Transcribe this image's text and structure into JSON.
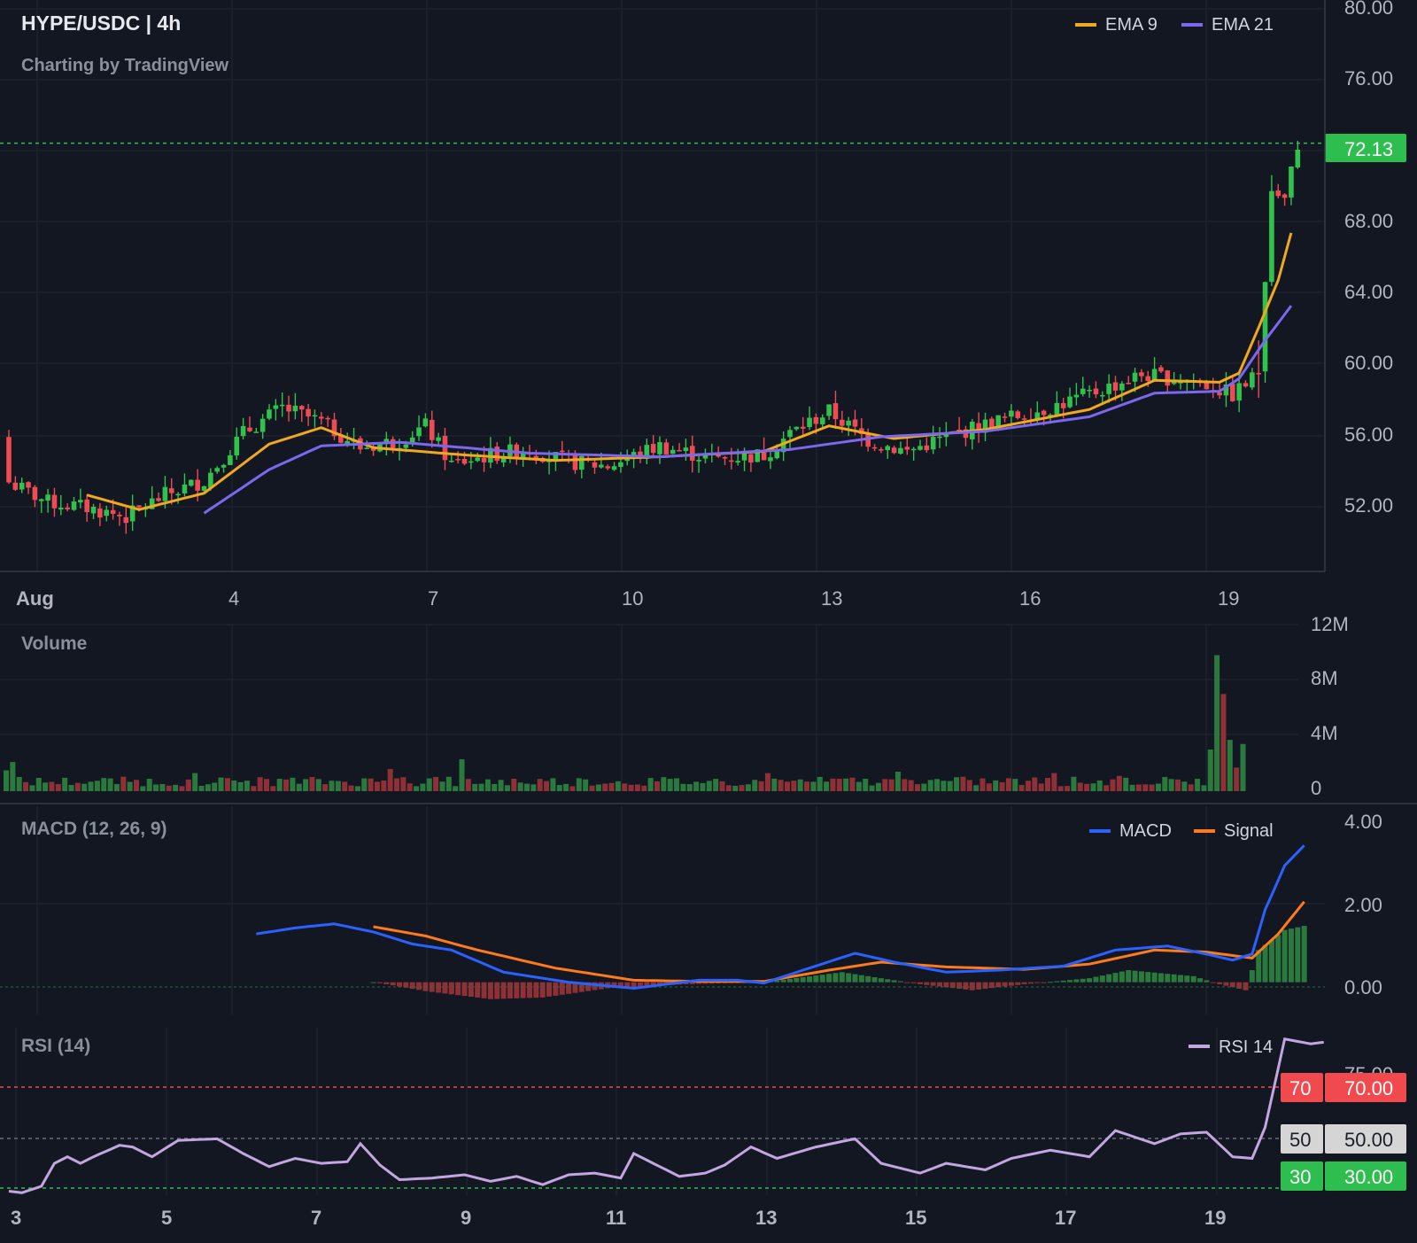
{
  "header": {
    "title": "HYPE/USDC | 4h",
    "attribution": "Charting by TradingView"
  },
  "colors": {
    "background": "#131722",
    "grid": "#232733",
    "text": "#d1d4dc",
    "subtext": "#8a8f9c",
    "up": "#26a69a",
    "candle_up": "#31c24d",
    "candle_down": "#ef4b55",
    "vol_up": "#2a7a3e",
    "vol_down": "#8e3035",
    "ema9": "#f0a91d",
    "ema21": "#7b68ee",
    "macd": "#2962ff",
    "signal": "#ff7a1a",
    "rsi": "#c3a6e0",
    "last_price": "#2ebd4f",
    "rsi_70": "#f0494e",
    "rsi_50": "#d5d5d5",
    "rsi_30": "#2ebd4f"
  },
  "price_panel": {
    "legend": [
      {
        "name": "EMA 9",
        "color": "#f0a91d"
      },
      {
        "name": "EMA 21",
        "color": "#7b68ee"
      }
    ],
    "y_ticks": [
      "80.00",
      "76.00",
      "68.00",
      "64.00",
      "60.00",
      "56.00",
      "52.00"
    ],
    "last_price_label": "72.13",
    "x_ticks": [
      "Aug",
      "4",
      "7",
      "10",
      "13",
      "16",
      "19"
    ]
  },
  "volume_panel": {
    "title": "Volume",
    "y_ticks": [
      "12M",
      "8M",
      "4M",
      "0"
    ]
  },
  "macd_panel": {
    "title": "MACD (12, 26, 9)",
    "legend": [
      {
        "name": "MACD",
        "color": "#2962ff"
      },
      {
        "name": "Signal",
        "color": "#ff7a1a"
      }
    ],
    "y_ticks": [
      "4.00",
      "2.00",
      "0.00"
    ]
  },
  "rsi_panel": {
    "title": "RSI (14)",
    "legend": [
      {
        "name": "RSI 14",
        "color": "#c3a6e0"
      }
    ],
    "top_tick": "75.00",
    "levels": [
      {
        "short": "70",
        "label": "70.00"
      },
      {
        "short": "50",
        "label": "50.00"
      },
      {
        "short": "30",
        "label": "30.00"
      }
    ],
    "x_ticks": [
      "3",
      "5",
      "7",
      "9",
      "11",
      "13",
      "15",
      "17",
      "19"
    ]
  },
  "chart_data": [
    {
      "type": "candlestick",
      "title": "HYPE/USDC | 4h",
      "x_axis": "Aug 1 – Aug 20",
      "ylim": [
        48.6,
        80.0
      ],
      "grid": true,
      "legend_position": "top-right",
      "last_price": 72.13,
      "anchors": [
        [
          0,
          53.5
        ],
        [
          6,
          52.4
        ],
        [
          12,
          52.1
        ],
        [
          18,
          51.6
        ],
        [
          24,
          52.8
        ],
        [
          30,
          53.6
        ],
        [
          36,
          56.2
        ],
        [
          42,
          57.6
        ],
        [
          48,
          56.8
        ],
        [
          54,
          55.4
        ],
        [
          60,
          55.8
        ],
        [
          64,
          56.6
        ],
        [
          68,
          54.5
        ],
        [
          74,
          55.0
        ],
        [
          80,
          55.3
        ],
        [
          86,
          54.6
        ],
        [
          92,
          54.4
        ],
        [
          100,
          55.5
        ],
        [
          108,
          54.8
        ],
        [
          116,
          55.0
        ],
        [
          120,
          56.2
        ],
        [
          126,
          57.4
        ],
        [
          132,
          55.8
        ],
        [
          138,
          55.2
        ],
        [
          144,
          56.0
        ],
        [
          152,
          56.9
        ],
        [
          160,
          57.6
        ],
        [
          168,
          58.6
        ],
        [
          174,
          59.4
        ],
        [
          182,
          59.1
        ],
        [
          188,
          58.3
        ],
        [
          192,
          59.5
        ],
        [
          194,
          69.5
        ],
        [
          196,
          69.0
        ],
        [
          198,
          72.1
        ]
      ],
      "ema9_anchors": [
        [
          12,
          52.8
        ],
        [
          20,
          52.0
        ],
        [
          30,
          52.9
        ],
        [
          40,
          55.6
        ],
        [
          48,
          56.5
        ],
        [
          56,
          55.4
        ],
        [
          70,
          55.0
        ],
        [
          84,
          54.7
        ],
        [
          100,
          54.9
        ],
        [
          116,
          55.2
        ],
        [
          126,
          56.6
        ],
        [
          136,
          55.9
        ],
        [
          150,
          56.4
        ],
        [
          166,
          57.5
        ],
        [
          176,
          59.1
        ],
        [
          186,
          59.0
        ],
        [
          189,
          59.5
        ],
        [
          192,
          62.0
        ],
        [
          195,
          64.6
        ],
        [
          197,
          67.2
        ]
      ],
      "ema21_anchors": [
        [
          30,
          51.8
        ],
        [
          40,
          54.2
        ],
        [
          48,
          55.5
        ],
        [
          60,
          55.7
        ],
        [
          80,
          55.1
        ],
        [
          100,
          54.9
        ],
        [
          120,
          55.3
        ],
        [
          134,
          56.0
        ],
        [
          150,
          56.3
        ],
        [
          166,
          57.1
        ],
        [
          176,
          58.4
        ],
        [
          186,
          58.5
        ],
        [
          189,
          59.2
        ],
        [
          193,
          61.3
        ],
        [
          197,
          63.2
        ]
      ],
      "series": [
        {
          "name": "EMA 9"
        },
        {
          "name": "EMA 21"
        }
      ]
    },
    {
      "type": "bar",
      "title": "Volume",
      "ylim": [
        0,
        12
      ],
      "unit": "M",
      "spikes": [
        [
          0,
          1.5
        ],
        [
          1,
          2.1
        ],
        [
          29,
          1.3
        ],
        [
          59,
          1.6
        ],
        [
          70,
          2.3
        ],
        [
          117,
          1.3
        ],
        [
          137,
          1.4
        ],
        [
          161,
          1.3
        ],
        [
          171,
          1.1
        ],
        [
          185,
          3.0
        ],
        [
          186,
          9.8
        ],
        [
          187,
          7.0
        ],
        [
          188,
          3.7
        ],
        [
          189,
          1.7
        ],
        [
          190,
          3.4
        ]
      ]
    },
    {
      "type": "line",
      "title": "MACD (12, 26, 9)",
      "ylim": [
        -0.8,
        4.0
      ],
      "legend_position": "top-right",
      "series": [
        {
          "name": "MACD",
          "anchors": [
            [
              38,
              1.2
            ],
            [
              44,
              1.35
            ],
            [
              50,
              1.45
            ],
            [
              56,
              1.25
            ],
            [
              62,
              0.95
            ],
            [
              68,
              0.8
            ],
            [
              76,
              0.25
            ],
            [
              86,
              0.0
            ],
            [
              96,
              -0.15
            ],
            [
              106,
              0.05
            ],
            [
              112,
              0.05
            ],
            [
              116,
              -0.02
            ],
            [
              122,
              0.3
            ],
            [
              130,
              0.72
            ],
            [
              136,
              0.5
            ],
            [
              144,
              0.25
            ],
            [
              152,
              0.3
            ],
            [
              162,
              0.4
            ],
            [
              170,
              0.8
            ],
            [
              178,
              0.9
            ],
            [
              184,
              0.7
            ],
            [
              188,
              0.55
            ],
            [
              191,
              0.7
            ],
            [
              193,
              1.8
            ],
            [
              196,
              2.9
            ],
            [
              199,
              3.4
            ]
          ]
        },
        {
          "name": "Signal",
          "anchors": [
            [
              56,
              1.38
            ],
            [
              64,
              1.15
            ],
            [
              72,
              0.8
            ],
            [
              84,
              0.35
            ],
            [
              96,
              0.05
            ],
            [
              106,
              0.02
            ],
            [
              116,
              0.02
            ],
            [
              126,
              0.3
            ],
            [
              134,
              0.5
            ],
            [
              144,
              0.38
            ],
            [
              156,
              0.32
            ],
            [
              166,
              0.45
            ],
            [
              176,
              0.8
            ],
            [
              184,
              0.75
            ],
            [
              191,
              0.6
            ],
            [
              195,
              1.2
            ],
            [
              199,
              2.0
            ]
          ]
        },
        {
          "name": "Histogram",
          "anchors": [
            [
              56,
              0
            ],
            [
              58,
              -0.05
            ],
            [
              64,
              -0.22
            ],
            [
              74,
              -0.42
            ],
            [
              82,
              -0.38
            ],
            [
              92,
              -0.15
            ],
            [
              104,
              -0.05
            ],
            [
              116,
              0.0
            ],
            [
              128,
              0.25
            ],
            [
              134,
              0.1
            ],
            [
              140,
              -0.05
            ],
            [
              148,
              -0.2
            ],
            [
              156,
              -0.05
            ],
            [
              166,
              0.1
            ],
            [
              172,
              0.3
            ],
            [
              182,
              0.15
            ],
            [
              186,
              -0.05
            ],
            [
              190,
              -0.2
            ],
            [
              192,
              0.8
            ],
            [
              196,
              1.3
            ],
            [
              199,
              1.4
            ]
          ]
        }
      ]
    },
    {
      "type": "line",
      "title": "RSI (14)",
      "ylim": [
        29,
        78
      ],
      "legend_position": "top-right",
      "levels": [
        70,
        50,
        30
      ],
      "series": [
        {
          "name": "RSI 14",
          "anchors": [
            [
              0,
              30.5
            ],
            [
              2,
              30.0
            ],
            [
              5,
              32.0
            ],
            [
              7,
              39.0
            ],
            [
              9,
              41.0
            ],
            [
              11,
              39.0
            ],
            [
              13,
              41.0
            ],
            [
              17,
              44.5
            ],
            [
              19,
              44.0
            ],
            [
              22,
              41.0
            ],
            [
              26,
              46.0
            ],
            [
              32,
              46.5
            ],
            [
              36,
              42.0
            ],
            [
              40,
              38.0
            ],
            [
              44,
              40.5
            ],
            [
              48,
              39.0
            ],
            [
              52,
              39.5
            ],
            [
              54,
              45.0
            ],
            [
              57,
              38.5
            ],
            [
              60,
              34.0
            ],
            [
              65,
              34.5
            ],
            [
              70,
              35.5
            ],
            [
              74,
              33.5
            ],
            [
              78,
              35.0
            ],
            [
              82,
              32.5
            ],
            [
              86,
              35.5
            ],
            [
              90,
              36.0
            ],
            [
              94,
              34.5
            ],
            [
              96,
              42.0
            ],
            [
              99,
              39.0
            ],
            [
              103,
              35.0
            ],
            [
              107,
              36.0
            ],
            [
              110,
              38.5
            ],
            [
              114,
              44.0
            ],
            [
              118,
              40.5
            ],
            [
              124,
              44.0
            ],
            [
              130,
              46.5
            ],
            [
              134,
              39.0
            ],
            [
              140,
              36.0
            ],
            [
              144,
              39.0
            ],
            [
              150,
              37.0
            ],
            [
              154,
              40.5
            ],
            [
              160,
              43.0
            ],
            [
              166,
              41.0
            ],
            [
              170,
              49.0
            ],
            [
              176,
              45.0
            ],
            [
              180,
              48.0
            ],
            [
              184,
              48.5
            ],
            [
              188,
              41.0
            ],
            [
              191,
              40.5
            ],
            [
              193,
              50.0
            ],
            [
              196,
              77.0
            ],
            [
              200,
              75.5
            ],
            [
              202,
              76.0
            ]
          ]
        }
      ]
    }
  ]
}
